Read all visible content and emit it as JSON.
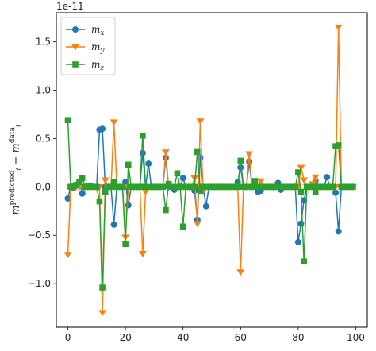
{
  "chart_data": {
    "type": "line",
    "scale_offset": "1e-11",
    "ylabel": {
      "base": "m",
      "sub": "i",
      "sup1": "predicted",
      "minus": " − ",
      "sup2": "data"
    },
    "xlim": [
      -4,
      104
    ],
    "ylim": [
      -1.45,
      1.8
    ],
    "x_ticks": [
      0,
      20,
      40,
      60,
      80,
      100
    ],
    "x_tick_labels": [
      "0",
      "20",
      "40",
      "60",
      "80",
      "100"
    ],
    "y_ticks": [
      -1.0,
      -0.5,
      0.0,
      0.5,
      1.0,
      1.5
    ],
    "y_tick_labels": [
      "−1.0",
      "−0.5",
      "0.0",
      "0.5",
      "1.0",
      "1.5"
    ],
    "legend": {
      "position": "top-left",
      "entries": [
        {
          "base": "m",
          "sub": "x"
        },
        {
          "base": "m",
          "sub": "y"
        },
        {
          "base": "m",
          "sub": "z"
        }
      ]
    },
    "series": [
      {
        "name": "m_x",
        "color": "#1f77b4",
        "marker": "circle",
        "x": [
          0,
          1,
          2,
          3,
          4,
          5,
          6,
          7,
          8,
          9,
          10,
          11,
          12,
          13,
          14,
          15,
          16,
          17,
          18,
          19,
          20,
          21,
          22,
          23,
          24,
          25,
          26,
          27,
          28,
          29,
          30,
          31,
          32,
          33,
          34,
          35,
          36,
          37,
          38,
          39,
          40,
          41,
          42,
          43,
          44,
          45,
          46,
          47,
          48,
          49,
          50,
          51,
          52,
          53,
          54,
          55,
          56,
          57,
          58,
          59,
          60,
          61,
          62,
          63,
          64,
          65,
          66,
          67,
          68,
          69,
          70,
          71,
          72,
          73,
          74,
          75,
          76,
          77,
          78,
          79,
          80,
          81,
          82,
          83,
          84,
          85,
          86,
          87,
          88,
          89,
          90,
          91,
          92,
          93,
          94,
          95,
          96,
          97,
          98,
          99
        ],
        "y": [
          -0.12,
          0.0,
          -0.01,
          0.02,
          0.05,
          -0.07,
          0.0,
          0.0,
          0.01,
          0.0,
          0.0,
          0.59,
          0.6,
          0.0,
          0.0,
          0.0,
          -0.39,
          0.0,
          0.0,
          0.0,
          0.05,
          -0.19,
          0.0,
          0.0,
          0.0,
          0.0,
          0.35,
          0.0,
          0.24,
          0.0,
          0.0,
          0.0,
          0.0,
          0.0,
          0.3,
          0.0,
          0.0,
          -0.03,
          0.0,
          0.0,
          0.09,
          0.0,
          0.0,
          0.0,
          -0.04,
          -0.34,
          0.3,
          0.0,
          -0.2,
          0.0,
          0.0,
          0.0,
          0.0,
          0.0,
          0.0,
          0.0,
          0.0,
          0.0,
          0.0,
          0.05,
          0.2,
          0.0,
          0.0,
          0.26,
          0.0,
          0.0,
          -0.05,
          -0.04,
          0.0,
          0.0,
          0.0,
          0.0,
          0.0,
          0.04,
          -0.03,
          0.0,
          0.0,
          0.0,
          0.0,
          0.0,
          -0.57,
          -0.38,
          -0.14,
          0.0,
          0.0,
          0.0,
          0.06,
          0.0,
          0.0,
          0.0,
          0.1,
          0.0,
          0.0,
          -0.06,
          -0.46,
          0.0,
          0.0,
          0.0,
          0.0,
          0.0
        ]
      },
      {
        "name": "m_y",
        "color": "#ff7f0e",
        "marker": "triangle-down",
        "x": [
          0,
          1,
          2,
          3,
          4,
          5,
          6,
          7,
          8,
          9,
          10,
          11,
          12,
          13,
          14,
          15,
          16,
          17,
          18,
          19,
          20,
          21,
          22,
          23,
          24,
          25,
          26,
          27,
          28,
          29,
          30,
          31,
          32,
          33,
          34,
          35,
          36,
          37,
          38,
          39,
          40,
          41,
          42,
          43,
          44,
          45,
          46,
          47,
          48,
          49,
          50,
          51,
          52,
          53,
          54,
          55,
          56,
          57,
          58,
          59,
          60,
          61,
          62,
          63,
          64,
          65,
          66,
          67,
          68,
          69,
          70,
          71,
          72,
          73,
          74,
          75,
          76,
          77,
          78,
          79,
          80,
          81,
          82,
          83,
          84,
          85,
          86,
          87,
          88,
          89,
          90,
          91,
          92,
          93,
          94,
          95,
          96,
          97,
          98,
          99
        ],
        "y": [
          -0.7,
          0.0,
          0.0,
          0.0,
          0.0,
          0.0,
          0.0,
          0.0,
          0.0,
          0.0,
          0.0,
          0.0,
          -1.3,
          0.07,
          0.0,
          0.0,
          0.67,
          0.0,
          0.0,
          0.0,
          -0.52,
          0.0,
          0.0,
          0.0,
          0.0,
          0.0,
          -0.69,
          -0.05,
          0.0,
          0.0,
          0.0,
          0.0,
          0.0,
          0.0,
          0.36,
          0.0,
          0.0,
          0.0,
          0.0,
          0.0,
          0.0,
          0.0,
          0.0,
          0.0,
          0.09,
          -0.38,
          0.68,
          -0.04,
          0.0,
          0.0,
          0.0,
          0.0,
          0.0,
          0.0,
          0.0,
          0.0,
          0.0,
          0.0,
          0.0,
          0.0,
          -0.88,
          0.0,
          0.0,
          0.34,
          0.0,
          0.0,
          0.0,
          0.06,
          0.0,
          0.0,
          0.0,
          0.0,
          0.0,
          0.0,
          0.0,
          0.0,
          0.0,
          0.0,
          0.0,
          0.0,
          0.0,
          0.2,
          0.07,
          0.0,
          0.0,
          0.03,
          0.1,
          0.0,
          0.0,
          0.0,
          0.0,
          0.0,
          0.0,
          0.0,
          1.65,
          0.0,
          0.0,
          0.0,
          0.0,
          0.0
        ]
      },
      {
        "name": "m_z",
        "color": "#2ca02c",
        "marker": "square",
        "x": [
          0,
          1,
          2,
          3,
          4,
          5,
          6,
          7,
          8,
          9,
          10,
          11,
          12,
          13,
          14,
          15,
          16,
          17,
          18,
          19,
          20,
          21,
          22,
          23,
          24,
          25,
          26,
          27,
          28,
          29,
          30,
          31,
          32,
          33,
          34,
          35,
          36,
          37,
          38,
          39,
          40,
          41,
          42,
          43,
          44,
          45,
          46,
          47,
          48,
          49,
          50,
          51,
          52,
          53,
          54,
          55,
          56,
          57,
          58,
          59,
          60,
          61,
          62,
          63,
          64,
          65,
          66,
          67,
          68,
          69,
          70,
          71,
          72,
          73,
          74,
          75,
          76,
          77,
          78,
          79,
          80,
          81,
          82,
          83,
          84,
          85,
          86,
          87,
          88,
          89,
          90,
          91,
          92,
          93,
          94,
          95,
          96,
          97,
          98,
          99
        ],
        "y": [
          0.69,
          0.0,
          0.01,
          0.02,
          0.05,
          0.09,
          0.0,
          0.01,
          0.0,
          0.0,
          0.0,
          -0.15,
          -1.04,
          -0.05,
          0.0,
          0.0,
          0.05,
          0.0,
          0.0,
          0.0,
          -0.59,
          0.23,
          0.0,
          0.0,
          0.0,
          0.0,
          0.53,
          0.0,
          0.0,
          0.0,
          0.0,
          0.0,
          0.0,
          0.0,
          -0.24,
          0.03,
          0.0,
          0.0,
          0.14,
          0.0,
          -0.41,
          0.0,
          0.0,
          0.0,
          0.0,
          0.36,
          -0.04,
          0.0,
          0.0,
          0.0,
          0.0,
          0.0,
          0.0,
          0.0,
          0.0,
          0.0,
          0.0,
          0.0,
          0.0,
          0.0,
          0.27,
          0.0,
          0.0,
          0.0,
          0.0,
          0.06,
          0.0,
          0.0,
          0.0,
          0.0,
          0.0,
          0.0,
          0.0,
          0.0,
          0.0,
          0.0,
          0.0,
          0.0,
          0.0,
          0.0,
          0.15,
          -0.05,
          -0.77,
          0.0,
          0.0,
          0.0,
          -0.05,
          0.0,
          0.0,
          0.0,
          0.0,
          0.0,
          0.0,
          0.42,
          0.43,
          0.0,
          0.0,
          0.0,
          0.0,
          0.0
        ]
      }
    ]
  }
}
